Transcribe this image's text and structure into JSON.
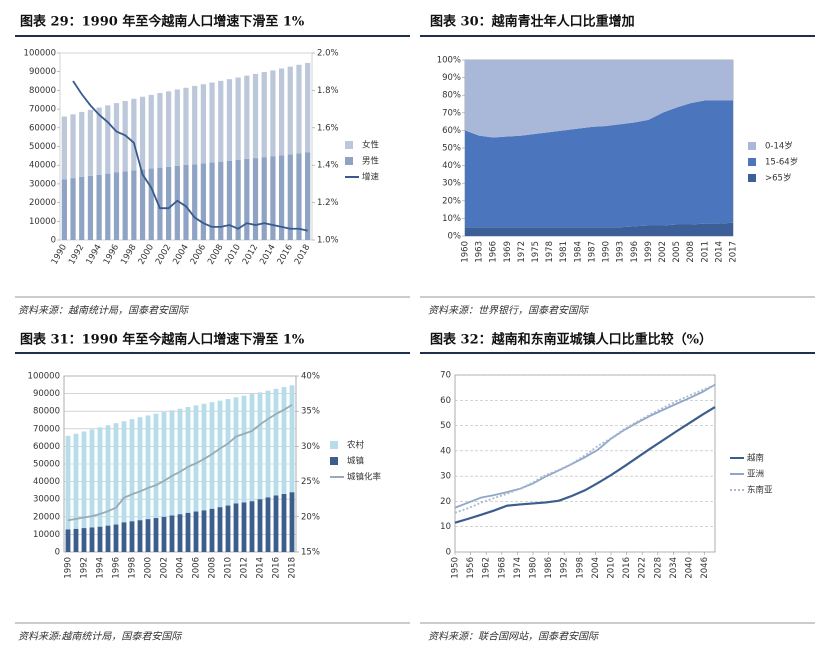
{
  "chart_data": [
    {
      "type": "bar",
      "title": "图表 29：1990 年至今越南人口增速下滑至 1%",
      "source": "资料来源：越南统计局，国泰君安国际",
      "categories": [
        "1990",
        null,
        "1992",
        null,
        "1994",
        null,
        "1996",
        null,
        "1998",
        null,
        "2000",
        null,
        "2002",
        null,
        "2004",
        null,
        "2006",
        null,
        "2008",
        null,
        "2010",
        null,
        "2012",
        null,
        "2014",
        null,
        "2016",
        null,
        "2018"
      ],
      "series": [
        {
          "name": "男性",
          "color": "#8fa3c4",
          "values": [
            32500,
            33100,
            33700,
            34300,
            34900,
            35500,
            36100,
            36700,
            37200,
            37800,
            38200,
            38700,
            39100,
            39600,
            40100,
            40500,
            41000,
            41500,
            41900,
            42400,
            42900,
            43400,
            43800,
            44300,
            44800,
            45300,
            45800,
            46300,
            46800
          ]
        },
        {
          "name": "女性",
          "color": "#bcc7da",
          "values": [
            33500,
            34100,
            34800,
            35300,
            35900,
            36500,
            37100,
            37600,
            38300,
            38800,
            39400,
            39900,
            40400,
            40900,
            41300,
            41900,
            42300,
            42700,
            43200,
            43600,
            44000,
            44500,
            45000,
            45500,
            45900,
            46400,
            46900,
            47400,
            47900
          ]
        },
        {
          "name": "增速",
          "color": "#3a5a8c",
          "axis": "y2",
          "values": [
            null,
            1.85,
            1.78,
            1.72,
            1.67,
            1.63,
            1.58,
            1.56,
            1.52,
            1.35,
            1.28,
            1.17,
            1.17,
            1.21,
            1.18,
            1.12,
            1.09,
            1.07,
            1.07,
            1.08,
            1.06,
            1.09,
            1.08,
            1.09,
            1.08,
            1.07,
            1.06,
            1.06,
            1.05
          ]
        }
      ],
      "ylim": [
        0,
        100000
      ],
      "yticks": [
        0,
        10000,
        20000,
        30000,
        40000,
        50000,
        60000,
        70000,
        80000,
        90000,
        100000
      ],
      "y2lim": [
        1.0,
        2.0
      ],
      "y2ticks": [
        {
          "value": 1.0,
          "label": "1.0%"
        },
        {
          "value": 1.2,
          "label": "1.2%"
        },
        {
          "value": 1.4,
          "label": "1.4%"
        },
        {
          "value": 1.6,
          "label": "1.6%"
        },
        {
          "value": 1.8,
          "label": "1.8%"
        },
        {
          "value": 2.0,
          "label": "2.0%"
        }
      ],
      "grid": false,
      "legend": "right"
    },
    {
      "type": "area",
      "title": "图表 30：越南青壮年人口比重增加",
      "source": "资料来源：世界银行，国泰君安国际",
      "categories": [
        "1960",
        "1963",
        "1966",
        "1969",
        "1972",
        "1975",
        "1978",
        "1981",
        "1984",
        "1987",
        "1990",
        "1993",
        "1996",
        "1999",
        "2002",
        "2005",
        "2008",
        "2011",
        "2014",
        "2017"
      ],
      "series": [
        {
          "name": ">65岁",
          "color": "#3d5f97",
          "values": [
            5,
            5,
            5,
            5,
            5,
            5,
            5,
            5,
            5,
            5,
            5,
            5,
            5.5,
            6,
            6,
            6.5,
            6.5,
            7,
            7,
            7.5
          ]
        },
        {
          "name": "15-64岁",
          "color": "#4b76bd",
          "values": [
            55,
            52,
            51,
            51.5,
            52,
            53,
            54,
            55,
            56,
            57,
            57.5,
            58.5,
            59,
            60,
            64,
            66.5,
            69,
            70,
            70,
            69.5
          ]
        },
        {
          "name": "0-14岁",
          "color": "#a9b8d9",
          "values": [
            40,
            43,
            44,
            43.5,
            43,
            42,
            41,
            40,
            39,
            38,
            37.5,
            36.5,
            35.5,
            34,
            30,
            27,
            24.5,
            23,
            23,
            23
          ]
        }
      ],
      "ylim": [
        0,
        100
      ],
      "yticks": [
        {
          "value": 0,
          "label": "0%"
        },
        {
          "value": 10,
          "label": "10%"
        },
        {
          "value": 20,
          "label": "20%"
        },
        {
          "value": 30,
          "label": "30%"
        },
        {
          "value": 40,
          "label": "40%"
        },
        {
          "value": 50,
          "label": "50%"
        },
        {
          "value": 60,
          "label": "60%"
        },
        {
          "value": 70,
          "label": "70%"
        },
        {
          "value": 80,
          "label": "80%"
        },
        {
          "value": 90,
          "label": "90%"
        },
        {
          "value": 100,
          "label": "100%"
        }
      ],
      "grid": false,
      "legend": "right"
    },
    {
      "type": "bar",
      "title": "图表 31：1990 年至今越南人口增速下滑至 1%",
      "source": "资料来源:越南统计局，国泰君安国际",
      "categories": [
        "1990",
        null,
        "1992",
        null,
        "1994",
        null,
        "1996",
        null,
        "1998",
        null,
        "2000",
        null,
        "2002",
        null,
        "2004",
        null,
        "2006",
        null,
        "2008",
        null,
        "2010",
        null,
        "2012",
        null,
        "2014",
        null,
        "2016",
        null,
        "2018"
      ],
      "series": [
        {
          "name": "城镇",
          "color": "#3b5e8d",
          "values": [
            12900,
            13200,
            13600,
            14000,
            14400,
            15000,
            15600,
            16900,
            17500,
            18100,
            18700,
            19300,
            20000,
            20800,
            21500,
            22300,
            23000,
            23700,
            24600,
            25500,
            26400,
            27600,
            28200,
            28900,
            30000,
            31100,
            32100,
            33000,
            34000
          ]
        },
        {
          "name": "农村",
          "color": "#b6dde9",
          "values": [
            53100,
            54000,
            54900,
            55600,
            56400,
            57000,
            57600,
            57400,
            58000,
            58500,
            58900,
            59300,
            59500,
            59700,
            59900,
            60100,
            60300,
            60500,
            60500,
            60500,
            60500,
            60300,
            60600,
            60900,
            60700,
            60600,
            60600,
            60700,
            60700
          ]
        },
        {
          "name": "城镇化率",
          "color": "#9aa9bc",
          "axis": "y2",
          "values": [
            19.5,
            19.7,
            19.9,
            20.1,
            20.4,
            20.8,
            21.3,
            22.7,
            23.2,
            23.6,
            24.1,
            24.5,
            25.1,
            25.8,
            26.4,
            27.1,
            27.6,
            28.2,
            28.9,
            29.7,
            30.4,
            31.4,
            31.8,
            32.2,
            33.1,
            33.9,
            34.6,
            35.2,
            35.9
          ]
        }
      ],
      "ylim": [
        0,
        100000
      ],
      "yticks": [
        0,
        10000,
        20000,
        30000,
        40000,
        50000,
        60000,
        70000,
        80000,
        90000,
        100000
      ],
      "y2lim": [
        15,
        40
      ],
      "y2ticks": [
        {
          "value": 15,
          "label": "15%"
        },
        {
          "value": 20,
          "label": "20%"
        },
        {
          "value": 25,
          "label": "25%"
        },
        {
          "value": 30,
          "label": "30%"
        },
        {
          "value": 35,
          "label": "35%"
        },
        {
          "value": 40,
          "label": "40%"
        }
      ],
      "grid": true,
      "legend": "right"
    },
    {
      "type": "line",
      "title": "图表 32：越南和东南亚城镇人口比重比较（%）",
      "source": "资料来源：联合国网站，国泰君安国际",
      "x": [
        1950,
        1955,
        1960,
        1965,
        1970,
        1975,
        1980,
        1985,
        1990,
        1995,
        2000,
        2005,
        2010,
        2015,
        2020,
        2025,
        2030,
        2035,
        2040,
        2045,
        2050
      ],
      "series": [
        {
          "name": "越南",
          "color": "#3b5e8d",
          "style": "solid",
          "values": [
            11.6,
            13.1,
            14.7,
            16.4,
            18.3,
            18.8,
            19.2,
            19.6,
            20.3,
            22.2,
            24.4,
            27.3,
            30.4,
            33.8,
            37.3,
            40.8,
            44.2,
            47.6,
            50.9,
            54.2,
            57.3
          ]
        },
        {
          "name": "亚洲",
          "color": "#8fa6c6",
          "style": "solid",
          "values": [
            17.5,
            19.5,
            21.5,
            22.5,
            23.7,
            25,
            27.1,
            29.9,
            32.3,
            34.8,
            37.5,
            40.5,
            44.8,
            48.2,
            51.1,
            53.8,
            56.2,
            58.5,
            60.8,
            63.2,
            66.2
          ]
        },
        {
          "name": "东南亚",
          "color": "#a7b9d4",
          "style": "dotted",
          "values": [
            15.5,
            17.3,
            19.5,
            21.3,
            23,
            25,
            27.5,
            30.5,
            32.5,
            35,
            38.2,
            42,
            45,
            48.5,
            51.5,
            54.3,
            57,
            59.5,
            61.8,
            64,
            66
          ]
        }
      ],
      "xlim": [
        1950,
        2050
      ],
      "xticks": [
        1950,
        1956,
        1962,
        1968,
        1974,
        1980,
        1986,
        1992,
        1998,
        2004,
        2010,
        2016,
        2022,
        2028,
        2034,
        2040,
        2046
      ],
      "ylim": [
        0,
        70
      ],
      "yticks": [
        0,
        10,
        20,
        30,
        40,
        50,
        60,
        70
      ],
      "grid": true,
      "legend": "right"
    }
  ]
}
